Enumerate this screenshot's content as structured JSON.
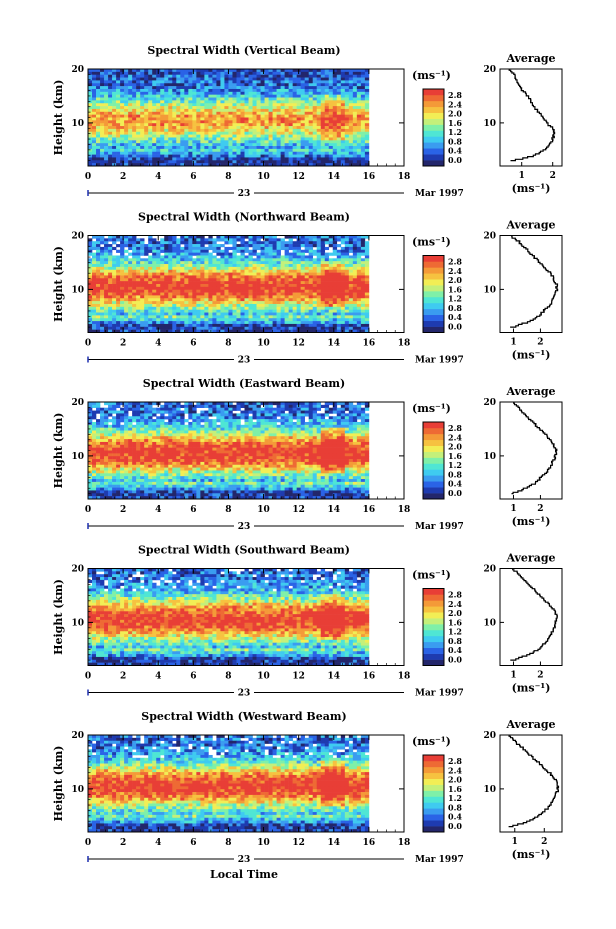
{
  "figure": {
    "date_label": "Mar 1997",
    "day_label": "23",
    "xlabel": "Local Time"
  },
  "colorscale": {
    "unit": "(ms⁻¹)",
    "tick_labels": [
      "0.0",
      "0.4",
      "0.8",
      "1.2",
      "1.6",
      "2.0",
      "2.4",
      "2.8"
    ],
    "colors": [
      "#23266b",
      "#1e3bb0",
      "#2a63e6",
      "#3a9cf0",
      "#3fcbf0",
      "#4fe6d4",
      "#7ff0a8",
      "#c4f07a",
      "#f2ee55",
      "#f6c240",
      "#f49a38",
      "#ee6a34",
      "#e83e36"
    ]
  },
  "chart_data": [
    {
      "type": "heatmap",
      "title": "Spectral Width (Vertical Beam)",
      "ylabel": "Height (km)",
      "xlim": [
        0,
        18
      ],
      "ylim": [
        2,
        20
      ],
      "xticks": [
        0,
        2,
        4,
        6,
        8,
        10,
        12,
        14,
        16,
        18
      ],
      "yticks": [
        10,
        20
      ],
      "data_xrange": [
        0,
        16
      ],
      "colorbar": {
        "range": [
          0.0,
          2.8
        ]
      },
      "profile": {
        "title": "Average",
        "xlabel": "(ms⁻¹)",
        "xticks": [
          1,
          2
        ],
        "xlim": [
          0.3,
          2.3
        ],
        "heights": [
          3,
          4,
          5,
          6,
          7,
          8,
          9,
          10,
          11,
          12,
          13,
          14,
          15,
          16,
          17,
          18,
          19,
          20
        ],
        "values": [
          0.6,
          1.4,
          1.7,
          1.9,
          2.0,
          2.05,
          2.0,
          1.85,
          1.7,
          1.55,
          1.4,
          1.3,
          1.2,
          1.05,
          0.95,
          0.85,
          0.75,
          0.6
        ]
      }
    },
    {
      "type": "heatmap",
      "title": "Spectral Width (Northward Beam)",
      "ylabel": "Height (km)",
      "xlim": [
        0,
        18
      ],
      "ylim": [
        2,
        20
      ],
      "xticks": [
        0,
        2,
        4,
        6,
        8,
        10,
        12,
        14,
        16,
        18
      ],
      "yticks": [
        10,
        20
      ],
      "data_xrange": [
        0,
        16
      ],
      "colorbar": {
        "range": [
          0.0,
          2.8
        ]
      },
      "profile": {
        "title": "Average",
        "xlabel": "(ms⁻¹)",
        "xticks": [
          1,
          2
        ],
        "xlim": [
          0.5,
          2.8
        ],
        "heights": [
          3,
          4,
          5,
          6,
          7,
          8,
          9,
          10,
          11,
          12,
          13,
          14,
          15,
          16,
          17,
          18,
          19,
          20
        ],
        "values": [
          0.9,
          1.5,
          1.9,
          2.1,
          2.3,
          2.45,
          2.55,
          2.6,
          2.6,
          2.5,
          2.4,
          2.2,
          2.0,
          1.8,
          1.6,
          1.4,
          1.2,
          0.9
        ]
      }
    },
    {
      "type": "heatmap",
      "title": "Spectral Width (Eastward Beam)",
      "ylabel": "Height (km)",
      "xlim": [
        0,
        18
      ],
      "ylim": [
        2,
        20
      ],
      "xticks": [
        0,
        2,
        4,
        6,
        8,
        10,
        12,
        14,
        16,
        18
      ],
      "yticks": [
        10,
        20
      ],
      "data_xrange": [
        0,
        16
      ],
      "colorbar": {
        "range": [
          0.0,
          2.8
        ]
      },
      "profile": {
        "title": "Average",
        "xlabel": "(ms⁻¹)",
        "xticks": [
          1,
          2
        ],
        "xlim": [
          0.5,
          2.8
        ],
        "heights": [
          3,
          4,
          5,
          6,
          7,
          8,
          9,
          10,
          11,
          12,
          13,
          14,
          15,
          16,
          17,
          18,
          19,
          20
        ],
        "values": [
          0.9,
          1.4,
          1.8,
          2.0,
          2.2,
          2.35,
          2.45,
          2.55,
          2.6,
          2.5,
          2.4,
          2.2,
          2.0,
          1.8,
          1.6,
          1.4,
          1.2,
          1.0
        ]
      }
    },
    {
      "type": "heatmap",
      "title": "Spectral Width (Southward Beam)",
      "ylabel": "Height (km)",
      "xlim": [
        0,
        18
      ],
      "ylim": [
        2,
        20
      ],
      "xticks": [
        0,
        2,
        4,
        6,
        8,
        10,
        12,
        14,
        16,
        18
      ],
      "yticks": [
        10,
        20
      ],
      "data_xrange": [
        0,
        16
      ],
      "colorbar": {
        "range": [
          0.0,
          2.8
        ]
      },
      "profile": {
        "title": "Average",
        "xlabel": "(ms⁻¹)",
        "xticks": [
          1,
          2
        ],
        "xlim": [
          0.5,
          2.8
        ],
        "heights": [
          3,
          4,
          5,
          6,
          7,
          8,
          9,
          10,
          11,
          12,
          13,
          14,
          15,
          16,
          17,
          18,
          19,
          20
        ],
        "values": [
          0.9,
          1.5,
          1.9,
          2.1,
          2.3,
          2.4,
          2.5,
          2.55,
          2.6,
          2.55,
          2.4,
          2.2,
          2.0,
          1.8,
          1.6,
          1.4,
          1.2,
          1.0
        ]
      }
    },
    {
      "type": "heatmap",
      "title": "Spectral Width (Westward Beam)",
      "ylabel": "Height (km)",
      "xlim": [
        0,
        18
      ],
      "ylim": [
        2,
        20
      ],
      "xticks": [
        0,
        2,
        4,
        6,
        8,
        10,
        12,
        14,
        16,
        18
      ],
      "yticks": [
        10,
        20
      ],
      "data_xrange": [
        0,
        16
      ],
      "colorbar": {
        "range": [
          0.0,
          2.8
        ]
      },
      "profile": {
        "title": "Average",
        "xlabel": "(ms⁻¹)",
        "xticks": [
          1,
          2
        ],
        "xlim": [
          0.5,
          2.6
        ],
        "heights": [
          3,
          4,
          5,
          6,
          7,
          8,
          9,
          10,
          11,
          12,
          13,
          14,
          15,
          16,
          17,
          18,
          19,
          20
        ],
        "values": [
          0.8,
          1.4,
          1.8,
          2.0,
          2.2,
          2.3,
          2.4,
          2.45,
          2.45,
          2.35,
          2.2,
          2.0,
          1.8,
          1.6,
          1.4,
          1.2,
          1.0,
          0.8
        ]
      }
    }
  ]
}
